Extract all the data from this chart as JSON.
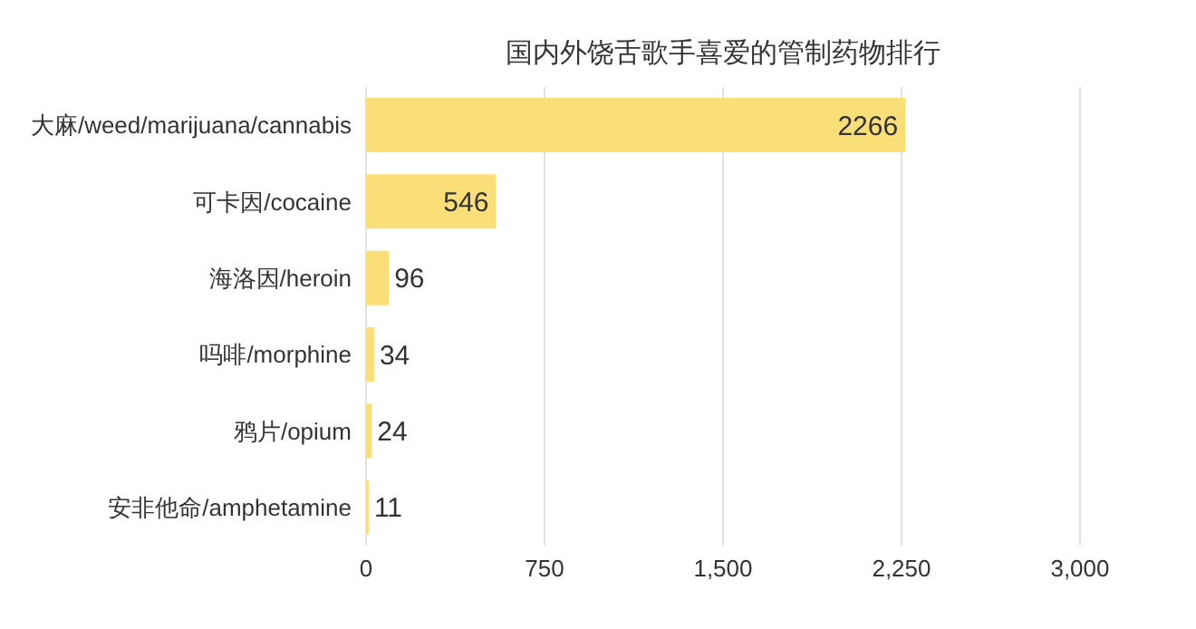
{
  "chart_data": {
    "type": "bar",
    "orientation": "horizontal",
    "title": "国内外饶舌歌手喜爱的管制药物排行",
    "categories": [
      "大麻/weed/marijuana/cannabis",
      "可卡因/cocaine",
      "海洛因/heroin",
      "吗啡/morphine",
      "鸦片/opium",
      "安非他命/amphetamine"
    ],
    "values": [
      2266,
      546,
      96,
      34,
      24,
      11
    ],
    "color": "#fade78",
    "xlim": [
      0,
      3000
    ],
    "xticks": [
      0,
      {
        "value": 750,
        "label": "750"
      },
      {
        "value": 1500,
        "label": "1,500"
      },
      {
        "value": 2250,
        "label": "2,250"
      },
      {
        "value": 3000,
        "label": "3,000"
      }
    ],
    "grid": "x",
    "data_labels": true
  }
}
